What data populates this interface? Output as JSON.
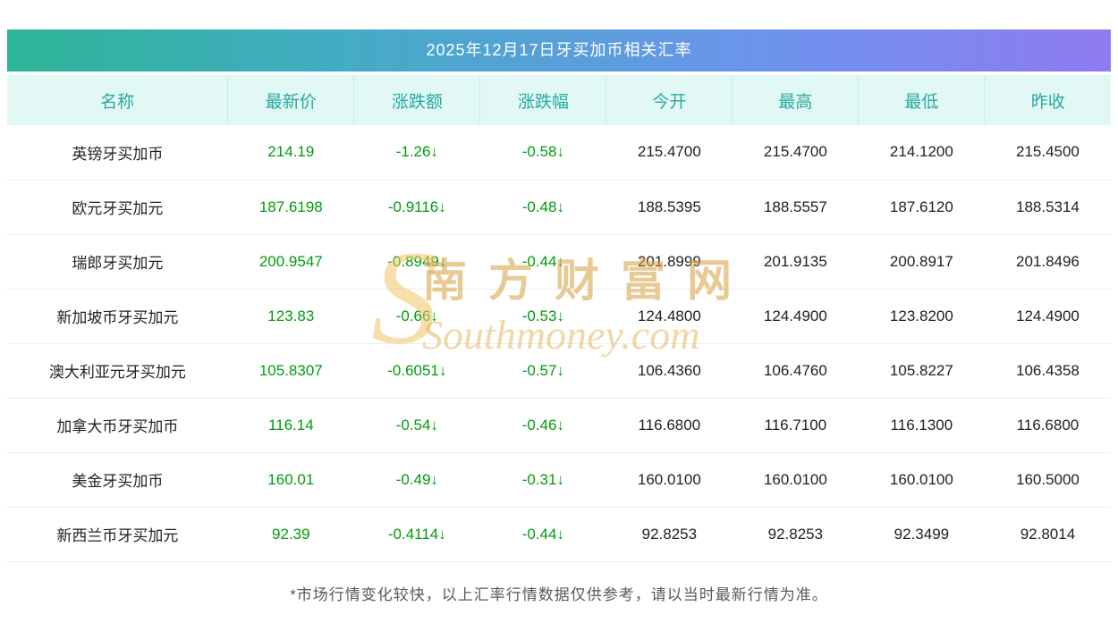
{
  "title": "2025年12月17日牙买加币相关汇率",
  "table": {
    "headers": [
      "名称",
      "最新价",
      "涨跌额",
      "涨跌幅",
      "今开",
      "最高",
      "最低",
      "昨收"
    ],
    "rows": [
      {
        "name": "英镑牙买加币",
        "latest": "214.19",
        "change": "-1.26↓",
        "change_pct": "-0.58↓",
        "open": "215.4700",
        "high": "215.4700",
        "low": "214.1200",
        "prev_close": "215.4500"
      },
      {
        "name": "欧元牙买加元",
        "latest": "187.6198",
        "change": "-0.9116↓",
        "change_pct": "-0.48↓",
        "open": "188.5395",
        "high": "188.5557",
        "low": "187.6120",
        "prev_close": "188.5314"
      },
      {
        "name": "瑞郎牙买加元",
        "latest": "200.9547",
        "change": "-0.8949↓",
        "change_pct": "-0.44↓",
        "open": "201.8999",
        "high": "201.9135",
        "low": "200.8917",
        "prev_close": "201.8496"
      },
      {
        "name": "新加坡币牙买加元",
        "latest": "123.83",
        "change": "-0.66↓",
        "change_pct": "-0.53↓",
        "open": "124.4800",
        "high": "124.4900",
        "low": "123.8200",
        "prev_close": "124.4900"
      },
      {
        "name": "澳大利亚元牙买加元",
        "latest": "105.8307",
        "change": "-0.6051↓",
        "change_pct": "-0.57↓",
        "open": "106.4360",
        "high": "106.4760",
        "low": "105.8227",
        "prev_close": "106.4358"
      },
      {
        "name": "加拿大币牙买加币",
        "latest": "116.14",
        "change": "-0.54↓",
        "change_pct": "-0.46↓",
        "open": "116.6800",
        "high": "116.7100",
        "low": "116.1300",
        "prev_close": "116.6800"
      },
      {
        "name": "美金牙买加币",
        "latest": "160.01",
        "change": "-0.49↓",
        "change_pct": "-0.31↓",
        "open": "160.0100",
        "high": "160.0100",
        "low": "160.0100",
        "prev_close": "160.5000"
      },
      {
        "name": "新西兰币牙买加元",
        "latest": "92.39",
        "change": "-0.4114↓",
        "change_pct": "-0.44↓",
        "open": "92.8253",
        "high": "92.8253",
        "low": "92.3499",
        "prev_close": "92.8014"
      }
    ]
  },
  "footer_note": "*市场行情变化较快，以上汇率行情数据仅供参考，请以当时最新行情为准。",
  "watermark": {
    "logo": "S",
    "cn": "南方财富网",
    "en": "Southmoney.com"
  },
  "colors": {
    "value_down_green": "#009c0d",
    "header_text": "#2aa9a0",
    "header_background": "#e1f8f5",
    "title_gradient_left": "#2db597",
    "title_gradient_right": "#8f7bf0",
    "watermark_gold": "#d9a850"
  }
}
